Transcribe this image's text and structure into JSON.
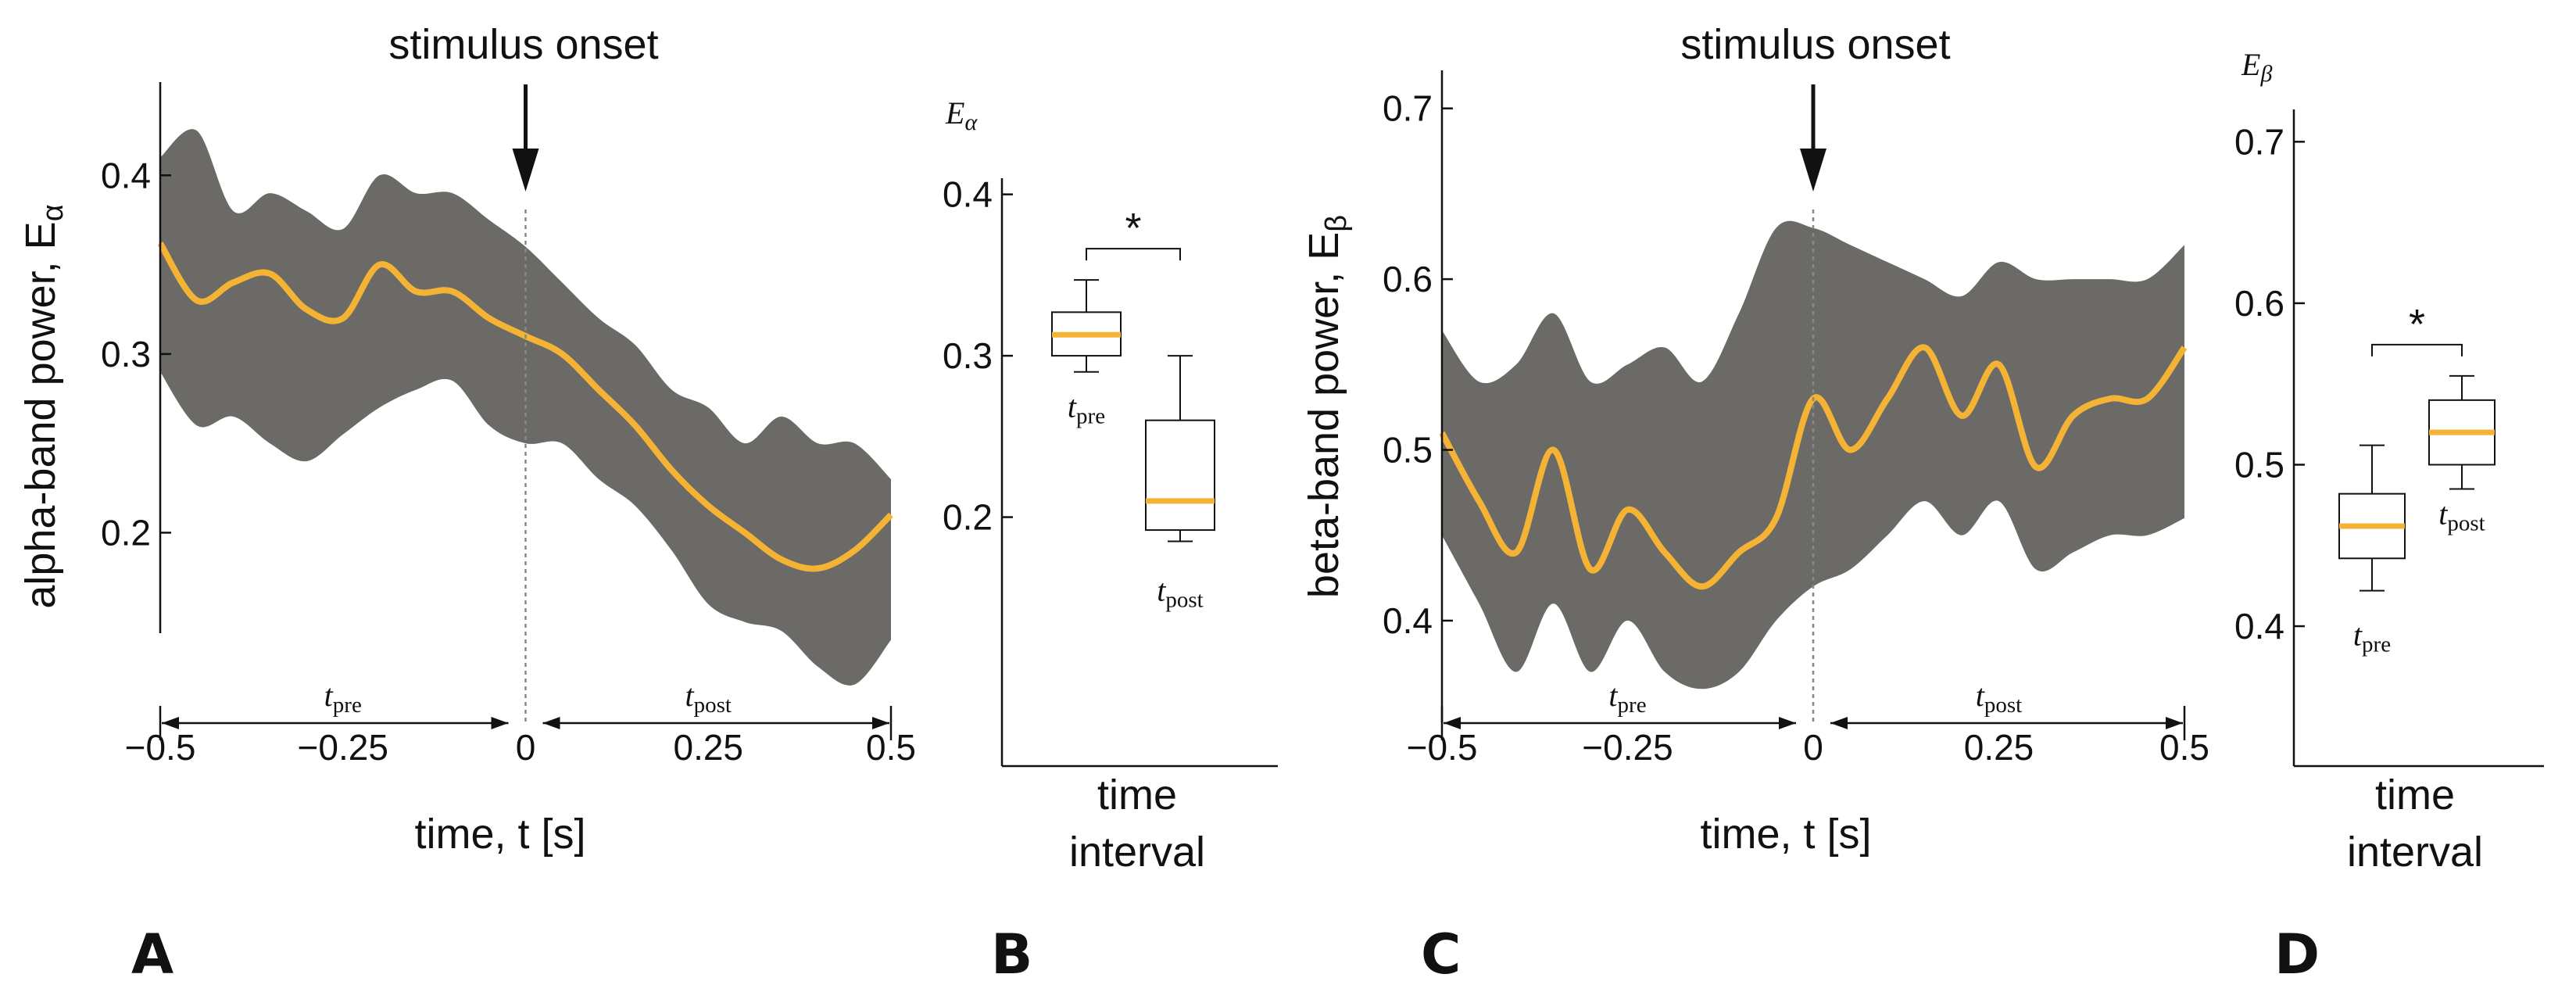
{
  "colors": {
    "band": "#6b6a66",
    "mean": "#f5b335",
    "axis": "#111111",
    "box_median": "#f5b335"
  },
  "panels": {
    "A": "A",
    "B": "B",
    "C": "C",
    "D": "D"
  },
  "chart_data": [
    {
      "id": "A",
      "type": "line",
      "annotation": "stimulus onset",
      "xlabel": "time, t [s]",
      "ylabel": "alpha-band power, E",
      "ylabel_sub": "α",
      "xlim": [
        -0.5,
        0.5
      ],
      "ylim": [
        0.1,
        0.45
      ],
      "xticks": [
        -0.5,
        -0.25,
        0,
        0.25,
        0.5
      ],
      "xtick_labels": [
        "−0.5",
        "−0.25",
        "0",
        "0.25",
        "0.5"
      ],
      "yticks": [
        0.2,
        0.3,
        0.4
      ],
      "ytick_labels": [
        "0.2",
        "0.3",
        "0.4"
      ],
      "interval_pre": "t",
      "interval_pre_sub": "pre",
      "interval_post": "t",
      "interval_post_sub": "post",
      "x": [
        -0.5,
        -0.45,
        -0.4,
        -0.35,
        -0.3,
        -0.25,
        -0.2,
        -0.15,
        -0.1,
        -0.05,
        0,
        0.05,
        0.1,
        0.15,
        0.2,
        0.25,
        0.3,
        0.35,
        0.4,
        0.45,
        0.5
      ],
      "mean": [
        0.362,
        0.33,
        0.34,
        0.345,
        0.325,
        0.32,
        0.35,
        0.335,
        0.335,
        0.32,
        0.31,
        0.3,
        0.28,
        0.26,
        0.235,
        0.215,
        0.2,
        0.185,
        0.18,
        0.19,
        0.21
      ],
      "upper": [
        0.41,
        0.425,
        0.38,
        0.39,
        0.38,
        0.37,
        0.4,
        0.39,
        0.39,
        0.375,
        0.36,
        0.34,
        0.32,
        0.305,
        0.28,
        0.27,
        0.25,
        0.265,
        0.25,
        0.25,
        0.23
      ],
      "lower": [
        0.29,
        0.26,
        0.265,
        0.25,
        0.24,
        0.255,
        0.27,
        0.28,
        0.285,
        0.26,
        0.25,
        0.25,
        0.23,
        0.215,
        0.19,
        0.16,
        0.15,
        0.145,
        0.125,
        0.115,
        0.14
      ]
    },
    {
      "id": "B",
      "type": "box",
      "ylabel": "E",
      "ylabel_sub": "α",
      "xlabel_line1": "time",
      "xlabel_line2": "interval",
      "ylim": [
        0.1,
        0.41
      ],
      "yticks": [
        0.2,
        0.3,
        0.4
      ],
      "ytick_labels": [
        "0.2",
        "0.3",
        "0.4"
      ],
      "significance": "*",
      "boxes": [
        {
          "name": "t",
          "sub": "pre",
          "whislo": 0.29,
          "q1": 0.3,
          "med": 0.313,
          "q3": 0.327,
          "whishi": 0.347
        },
        {
          "name": "t",
          "sub": "post",
          "whislo": 0.185,
          "q1": 0.192,
          "med": 0.21,
          "q3": 0.26,
          "whishi": 0.3
        }
      ]
    },
    {
      "id": "C",
      "type": "line",
      "annotation": "stimulus onset",
      "xlabel": "time, t [s]",
      "ylabel": "beta-band power, E",
      "ylabel_sub": "β",
      "xlim": [
        -0.5,
        0.5
      ],
      "ylim": [
        0.34,
        0.72
      ],
      "xticks": [
        -0.5,
        -0.25,
        0,
        0.25,
        0.5
      ],
      "xtick_labels": [
        "−0.5",
        "−0.25",
        "0",
        "0.25",
        "0.5"
      ],
      "yticks": [
        0.4,
        0.5,
        0.6,
        0.7
      ],
      "ytick_labels": [
        "0.4",
        "0.5",
        "0.6",
        "0.7"
      ],
      "interval_pre": "t",
      "interval_pre_sub": "pre",
      "interval_post": "t",
      "interval_post_sub": "post",
      "x": [
        -0.5,
        -0.45,
        -0.4,
        -0.35,
        -0.3,
        -0.25,
        -0.2,
        -0.15,
        -0.1,
        -0.05,
        0,
        0.05,
        0.1,
        0.15,
        0.2,
        0.25,
        0.3,
        0.35,
        0.4,
        0.45,
        0.5
      ],
      "mean": [
        0.51,
        0.47,
        0.44,
        0.5,
        0.43,
        0.465,
        0.44,
        0.42,
        0.44,
        0.46,
        0.53,
        0.5,
        0.53,
        0.56,
        0.52,
        0.55,
        0.49,
        0.52,
        0.53,
        0.53,
        0.56
      ],
      "upper": [
        0.57,
        0.54,
        0.55,
        0.58,
        0.54,
        0.55,
        0.56,
        0.54,
        0.58,
        0.63,
        0.63,
        0.62,
        0.61,
        0.6,
        0.59,
        0.61,
        0.6,
        0.6,
        0.6,
        0.6,
        0.62
      ],
      "lower": [
        0.45,
        0.41,
        0.37,
        0.41,
        0.37,
        0.4,
        0.37,
        0.36,
        0.37,
        0.4,
        0.42,
        0.43,
        0.45,
        0.47,
        0.45,
        0.47,
        0.43,
        0.44,
        0.45,
        0.45,
        0.46
      ]
    },
    {
      "id": "D",
      "type": "box",
      "ylabel": "E",
      "ylabel_sub": "β",
      "xlabel_line1": "time",
      "xlabel_line2": "interval",
      "ylim": [
        0.34,
        0.72
      ],
      "yticks": [
        0.4,
        0.5,
        0.6,
        0.7
      ],
      "ytick_labels": [
        "0.4",
        "0.5",
        "0.6",
        "0.7"
      ],
      "significance": "*",
      "boxes": [
        {
          "name": "t",
          "sub": "pre",
          "whislo": 0.422,
          "q1": 0.442,
          "med": 0.462,
          "q3": 0.482,
          "whishi": 0.512
        },
        {
          "name": "t",
          "sub": "post",
          "whislo": 0.485,
          "q1": 0.5,
          "med": 0.52,
          "q3": 0.54,
          "whishi": 0.555
        }
      ]
    }
  ]
}
